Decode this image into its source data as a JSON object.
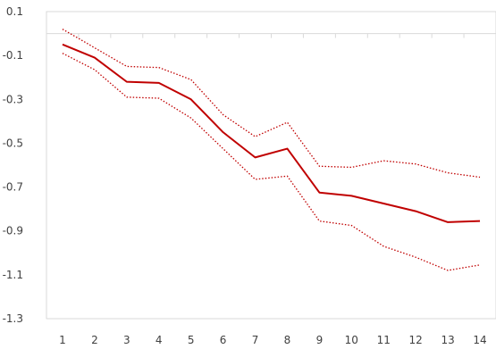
{
  "chart_data": {
    "type": "line",
    "title": "",
    "xlabel": "",
    "ylabel": "",
    "x": [
      1,
      2,
      3,
      4,
      5,
      6,
      7,
      8,
      9,
      10,
      11,
      12,
      13,
      14
    ],
    "ylim": [
      -1.3,
      0.1
    ],
    "y_ticks": [
      0.1,
      -0.1,
      -0.3,
      -0.5,
      -0.7,
      -0.9,
      -1.1,
      -1.3
    ],
    "y_tick_labels": [
      "0.1",
      "-0.1",
      "-0.3",
      "-0.5",
      "-0.7",
      "-0.9",
      "-1.1",
      "-1.3"
    ],
    "x_tick_labels": [
      "1",
      "2",
      "3",
      "4",
      "5",
      "6",
      "7",
      "8",
      "9",
      "10",
      "11",
      "12",
      "13",
      "14"
    ],
    "grid": false,
    "series": [
      {
        "role": "estimate",
        "style": "solid",
        "color": "#c00000",
        "values": [
          -0.05,
          -0.11,
          -0.22,
          -0.225,
          -0.3,
          -0.45,
          -0.565,
          -0.525,
          -0.725,
          -0.74,
          -0.775,
          -0.81,
          -0.86,
          -0.855
        ]
      },
      {
        "role": "upper-bound",
        "style": "dotted",
        "color": "#c00000",
        "values": [
          0.02,
          -0.065,
          -0.15,
          -0.155,
          -0.21,
          -0.37,
          -0.47,
          -0.405,
          -0.605,
          -0.61,
          -0.58,
          -0.595,
          -0.635,
          -0.655
        ]
      },
      {
        "role": "lower-bound",
        "style": "dotted",
        "color": "#c00000",
        "values": [
          -0.09,
          -0.165,
          -0.29,
          -0.295,
          -0.385,
          -0.525,
          -0.665,
          -0.65,
          -0.855,
          -0.875,
          -0.97,
          -1.02,
          -1.08,
          -1.055
        ]
      }
    ]
  }
}
